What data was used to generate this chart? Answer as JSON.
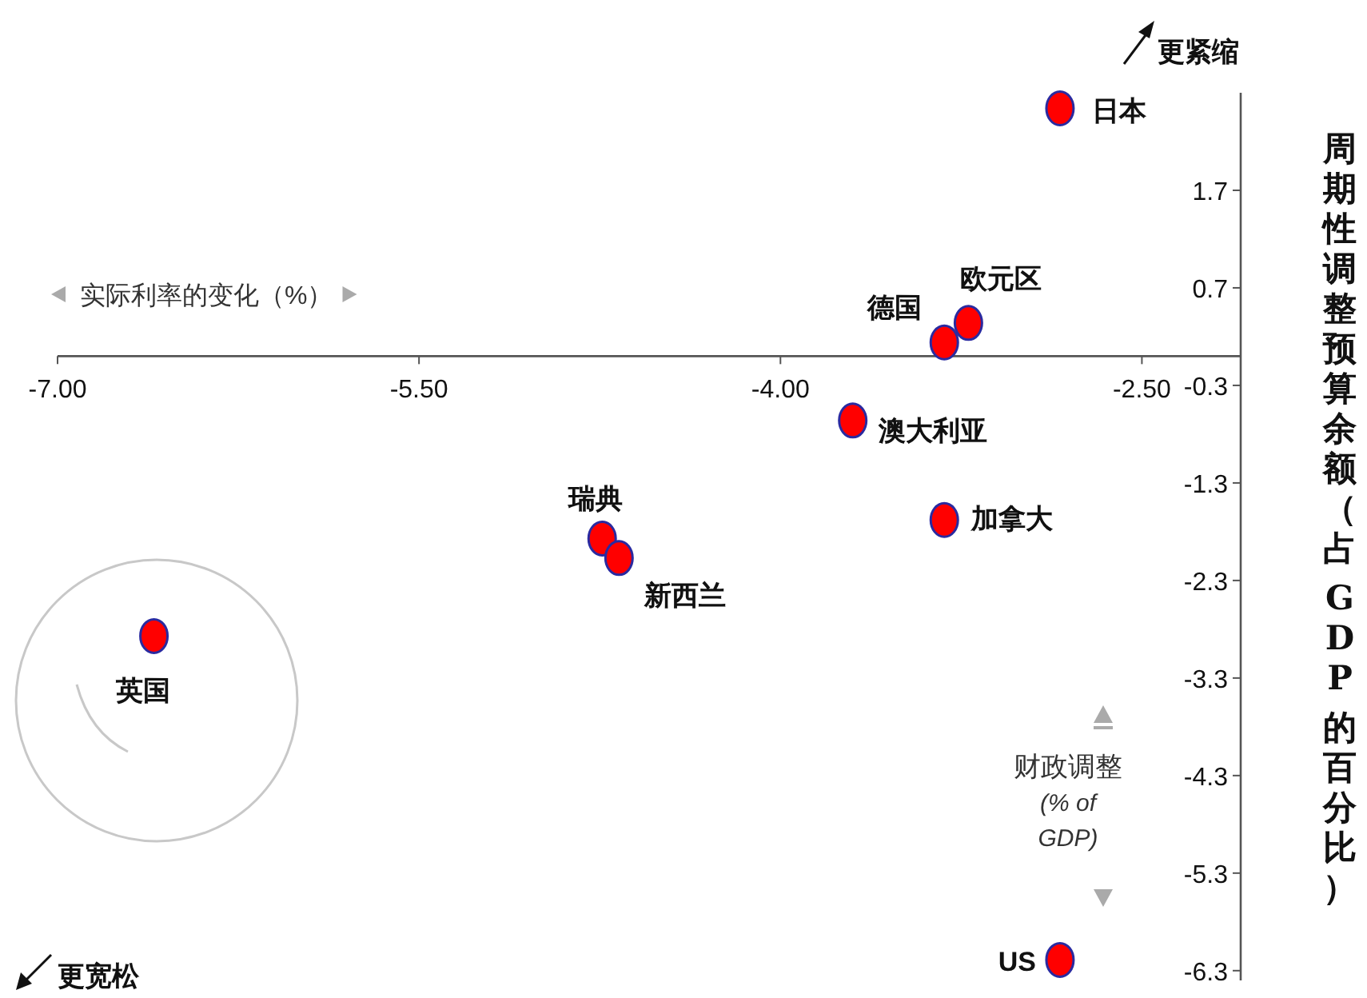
{
  "chart_data": {
    "type": "scatter",
    "xlabel": "实际利率的变化（%）",
    "ylabel": "周期性调整预算余额（占 GDP 的百分比）",
    "annotations": [
      "更紧缩",
      "更宽松",
      "财政调整\n(% of\nGDP)"
    ],
    "xlim": [
      -7,
      -2.09
    ],
    "ylim": [
      -6.4,
      2.7
    ],
    "xticks": [
      {
        "value": -7,
        "label": "-7.00"
      },
      {
        "value": -5.5,
        "label": "-5.50"
      },
      {
        "value": -4,
        "label": "-4.00"
      },
      {
        "value": -2.5,
        "label": "-2.50"
      }
    ],
    "yticks": [
      1.7,
      0.7,
      -0.3,
      -1.3,
      -2.3,
      -3.3,
      -4.3,
      -5.3,
      -6.3
    ],
    "marker": "circle",
    "series": [
      {
        "name": "日本",
        "color": "#ff0000",
        "x": [
          -2.84
        ],
        "values": [
          2.54
        ]
      },
      {
        "name": "欧元区",
        "color": "#ff0000",
        "x": [
          -3.22
        ],
        "values": [
          0.34
        ]
      },
      {
        "name": "德国",
        "color": "#ff0000",
        "x": [
          -3.32
        ],
        "values": [
          0.14
        ]
      },
      {
        "name": "澳大利亚",
        "color": "#ff0000",
        "x": [
          -3.7
        ],
        "values": [
          -0.66
        ]
      },
      {
        "name": "加拿大",
        "color": "#ff0000",
        "x": [
          -3.32
        ],
        "values": [
          -1.68
        ]
      },
      {
        "name": "瑞典",
        "color": "#ff0000",
        "x": [
          -4.74
        ],
        "values": [
          -1.87
        ]
      },
      {
        "name": "新西兰",
        "color": "#ff0000",
        "x": [
          -4.67
        ],
        "values": [
          -2.07
        ]
      },
      {
        "name": "英国",
        "color": "#ff0000",
        "x": [
          -6.6
        ],
        "values": [
          -2.87
        ]
      },
      {
        "name": "US",
        "color": "#ff0000",
        "x": [
          -2.84
        ],
        "values": [
          -6.19
        ]
      }
    ]
  }
}
